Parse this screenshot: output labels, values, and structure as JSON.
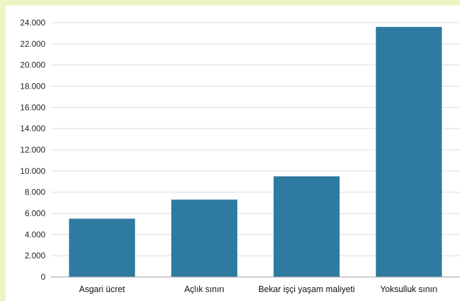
{
  "colors": {
    "background": "#eef5c4",
    "plot_area": "#ffffff",
    "bar": "#2e7aa0",
    "gridline": "#dcdcdc",
    "baseline": "#9a9a9a"
  },
  "chart_data": {
    "type": "bar",
    "title": "",
    "xlabel": "",
    "ylabel": "",
    "categories": [
      "Asgari ücret",
      "Açlık sınırı",
      "Bekar işçi yaşam maliyeti",
      "Yoksulluk sınırı"
    ],
    "values": [
      5500,
      7300,
      9500,
      23600
    ],
    "ylim": [
      0,
      24000
    ],
    "yticks": [
      0,
      2000,
      4000,
      6000,
      8000,
      10000,
      12000,
      14000,
      16000,
      18000,
      20000,
      22000,
      24000
    ],
    "ytick_labels": [
      "0",
      "2.000",
      "4.000",
      "6.000",
      "8.000",
      "10.000",
      "12.000",
      "14.000",
      "16.000",
      "18.000",
      "20.000",
      "22.000",
      "24.000"
    ],
    "grid": true,
    "legend": "none"
  }
}
